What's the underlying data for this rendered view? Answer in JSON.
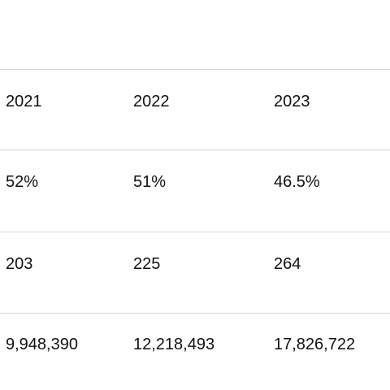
{
  "table": {
    "rows": [
      [
        "2021",
        "2022",
        "2023"
      ],
      [
        "52%",
        "51%",
        "46.5%"
      ],
      [
        "203",
        "225",
        "264"
      ],
      [
        "9,948,390",
        "12,218,493",
        "17,826,722"
      ]
    ]
  }
}
